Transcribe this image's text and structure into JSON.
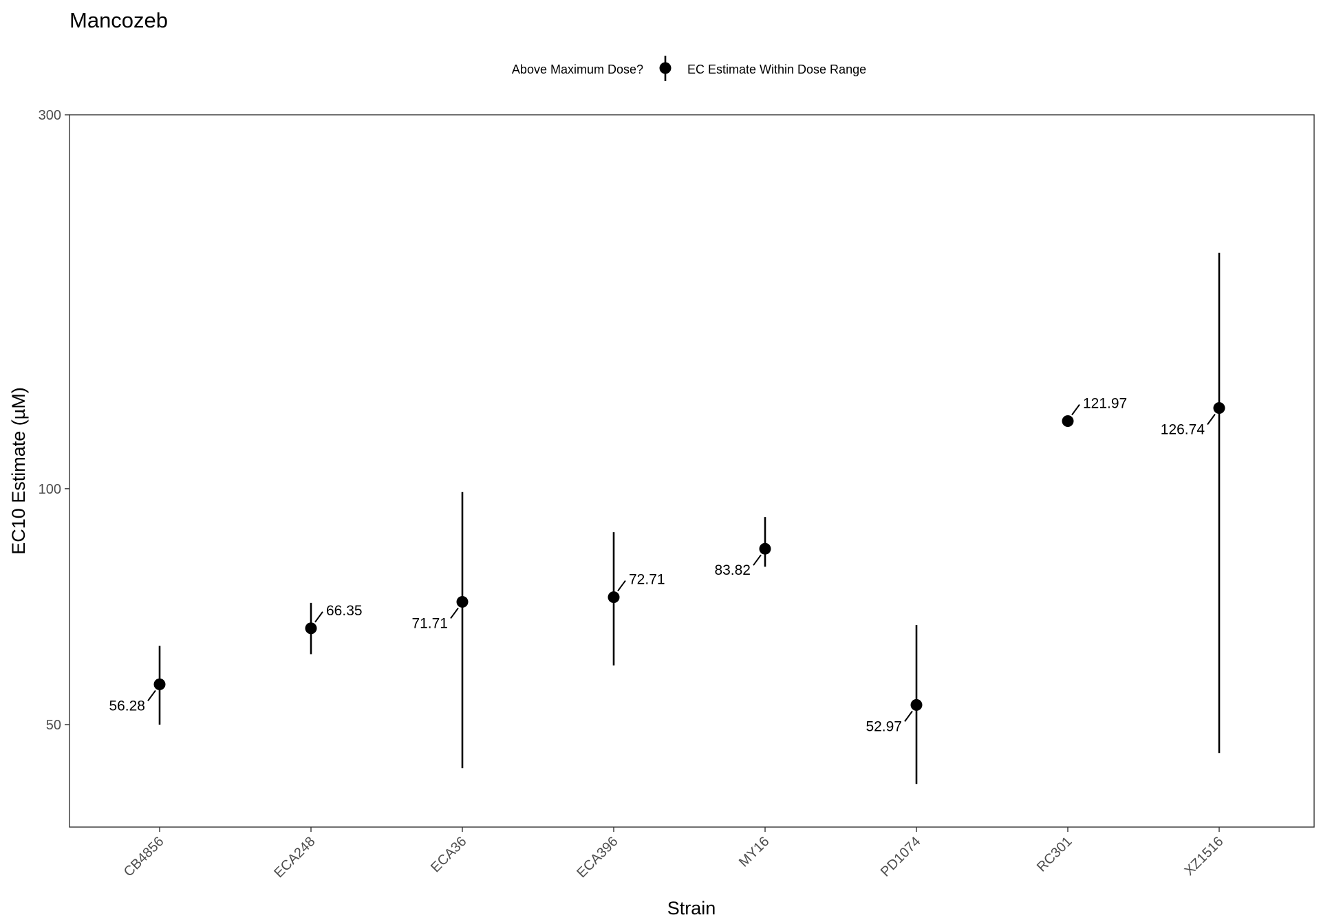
{
  "chart_data": {
    "type": "scatter",
    "title": "Mancozeb",
    "xlabel": "Strain",
    "ylabel": "EC10 Estimate (µM)",
    "y_scale": "log",
    "ylim": [
      37,
      300
    ],
    "yticks": [
      50,
      100,
      300
    ],
    "grid": false,
    "legend": {
      "placement": "top",
      "title": "Above Maximum Dose?",
      "entries": [
        {
          "label": "EC Estimate Within Dose Range",
          "color": "#000000",
          "shape": "point-with-errorbar"
        }
      ]
    },
    "categories": [
      "CB4856",
      "ECA248",
      "ECA36",
      "ECA396",
      "MY16",
      "PD1074",
      "RC301",
      "XZ1516"
    ],
    "series": [
      {
        "values": [
          56.28,
          66.35,
          71.71,
          72.71,
          83.82,
          52.97,
          121.97,
          126.74
        ],
        "lower": [
          50.0,
          61.5,
          44.0,
          59.5,
          79.5,
          42.0,
          null,
          46.0
        ],
        "upper": [
          63.0,
          71.5,
          99.0,
          88.0,
          92.0,
          67.0,
          null,
          200.0
        ],
        "labels": [
          "56.28",
          "66.35",
          "71.71",
          "72.71",
          "83.82",
          "52.97",
          "121.97",
          "126.74"
        ],
        "label_side": [
          "left",
          "right",
          "left",
          "right",
          "left",
          "left",
          "right",
          "left"
        ],
        "color": "#000000"
      }
    ]
  }
}
